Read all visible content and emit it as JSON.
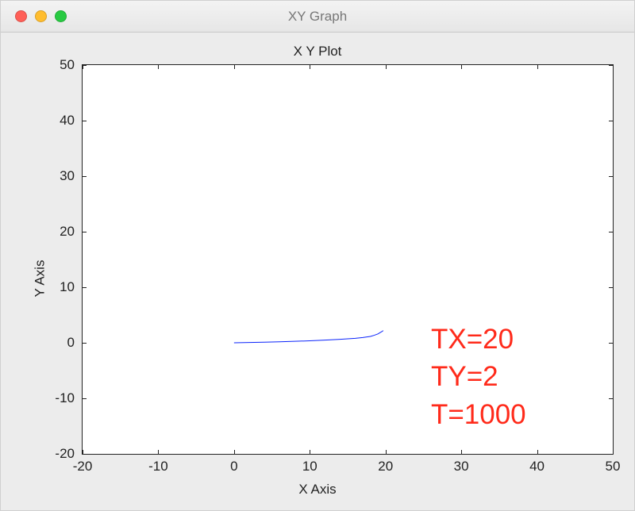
{
  "window": {
    "title": "XY Graph",
    "traffic_light_colors": {
      "close": "#ff5f57",
      "minimize": "#ffbd2e",
      "zoom": "#28ca42"
    },
    "titlebar_text_color": "#777777",
    "background_color": "#ececec"
  },
  "chart": {
    "type": "line",
    "title": "X Y Plot",
    "xlabel": "X Axis",
    "ylabel": "Y Axis",
    "xlim": [
      -20,
      50
    ],
    "ylim": [
      -20,
      50
    ],
    "xticks": [
      -20,
      -10,
      0,
      10,
      20,
      30,
      40,
      50
    ],
    "yticks": [
      -20,
      -10,
      0,
      10,
      20,
      30,
      40,
      50
    ],
    "xtick_labels": [
      "-20",
      "-10",
      "0",
      "10",
      "20",
      "30",
      "40",
      "50"
    ],
    "ytick_labels": [
      "-20",
      "-10",
      "0",
      "10",
      "20",
      "30",
      "40",
      "50"
    ],
    "tick_length": 5,
    "tick_fontsize": 17,
    "title_fontsize": 17,
    "label_fontsize": 17,
    "background_color": "#ffffff",
    "axis_color": "#222222",
    "text_color": "#222222",
    "grid": false,
    "series": [
      {
        "name": "trajectory",
        "color": "#0b24fb",
        "line_width": 1,
        "x": [
          0,
          2,
          4,
          6,
          8,
          10,
          12,
          14,
          16,
          17,
          18,
          18.5,
          19,
          19.3,
          19.5,
          19.7
        ],
        "y": [
          0,
          0.05,
          0.1,
          0.18,
          0.26,
          0.36,
          0.48,
          0.62,
          0.8,
          0.95,
          1.15,
          1.35,
          1.6,
          1.85,
          2.0,
          2.2
        ]
      }
    ],
    "annotation": {
      "lines": [
        "TX=20",
        "TY=2",
        "T=1000"
      ],
      "color": "#ff2a1a",
      "fontsize": 35,
      "x_data": 26,
      "y_top_data": 4
    }
  }
}
